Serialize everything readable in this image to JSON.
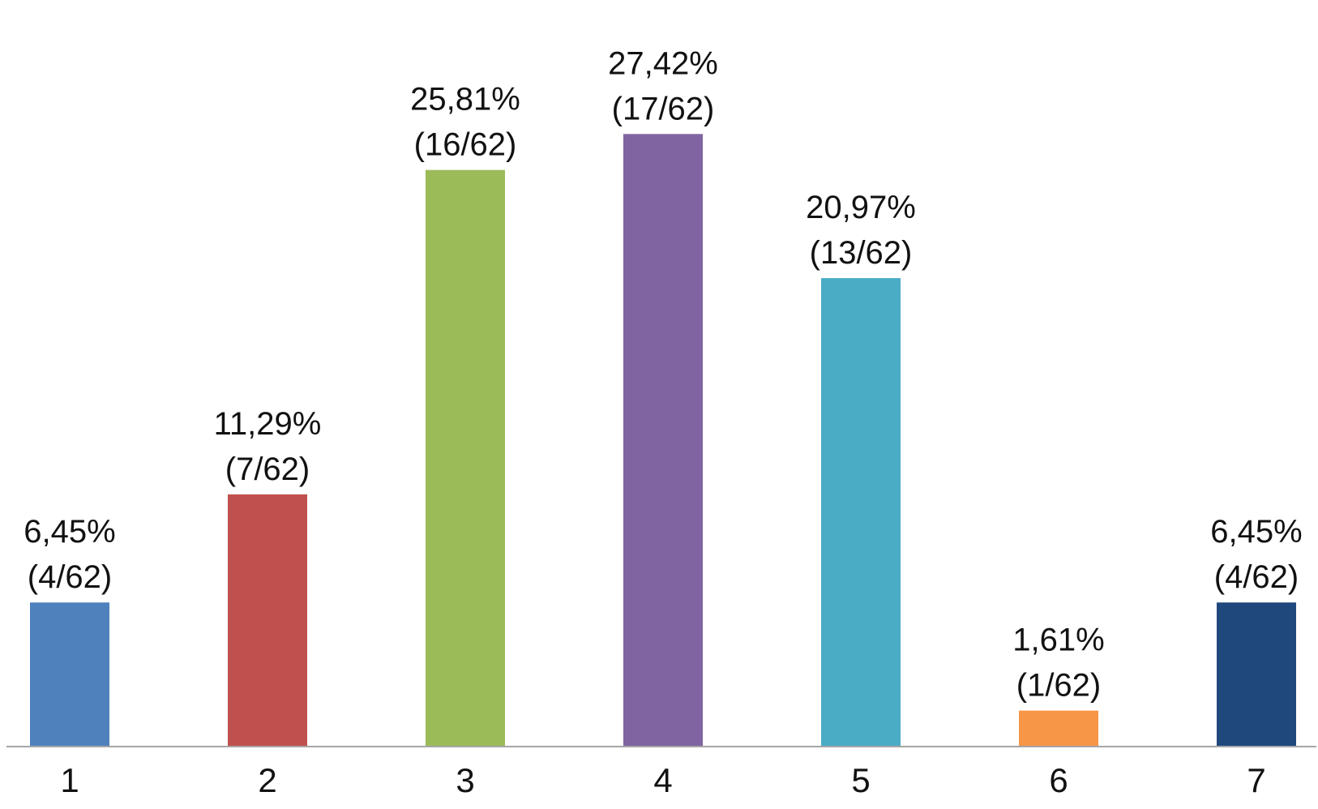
{
  "chart_data": {
    "type": "bar",
    "categories": [
      "1",
      "2",
      "3",
      "4",
      "5",
      "6",
      "7"
    ],
    "values": [
      6.45,
      11.29,
      25.81,
      27.42,
      20.97,
      1.61,
      6.45
    ],
    "labels_pct": [
      "6,45%",
      "11,29%",
      "25,81%",
      "27,42%",
      "20,97%",
      "1,61%",
      "6,45%"
    ],
    "labels_count": [
      "(4/62)",
      "(7/62)",
      "(16/62)",
      "(17/62)",
      "(13/62)",
      "(1/62)",
      "(4/62)"
    ],
    "colors": [
      "#4F81BD",
      "#C0504D",
      "#9BBB59",
      "#8064A2",
      "#4BACC6",
      "#F79646",
      "#1F497D"
    ],
    "title": "",
    "xlabel": "",
    "ylabel": "",
    "ylim": [
      0,
      30
    ],
    "grid": false,
    "legend": "none"
  }
}
